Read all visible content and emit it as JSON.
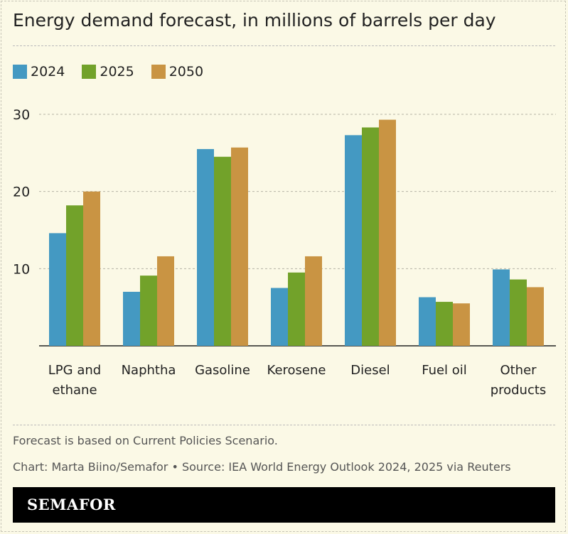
{
  "title": "Energy demand forecast, in millions of barrels per day",
  "note": "Forecast is based on Current Policies Scenario.",
  "credit": "Chart: Marta Biino/Semafor • Source: IEA World Energy Outlook 2024, 2025 via Reuters",
  "logo": "SEMAFOR",
  "chart_data": {
    "type": "bar",
    "title": "Energy demand forecast, in millions of barrels per day",
    "categories": [
      [
        "LPG and",
        "ethane"
      ],
      [
        "Naphtha"
      ],
      [
        "Gasoline"
      ],
      [
        "Kerosene"
      ],
      [
        "Diesel"
      ],
      [
        "Fuel oil"
      ],
      [
        "Other",
        "products"
      ]
    ],
    "series": [
      {
        "name": "2024",
        "color": "#4499c2",
        "values": [
          14.6,
          7.0,
          25.5,
          7.5,
          27.3,
          6.3,
          9.9
        ]
      },
      {
        "name": "2025",
        "color": "#72a22a",
        "values": [
          18.2,
          9.1,
          24.5,
          9.5,
          28.3,
          5.7,
          8.6
        ]
      },
      {
        "name": "2050",
        "color": "#c99443",
        "values": [
          20.0,
          11.6,
          25.7,
          11.6,
          29.3,
          5.5,
          7.6
        ]
      }
    ],
    "yticks": [
      10,
      20,
      30
    ],
    "ylim": [
      0,
      30
    ],
    "grid": true,
    "legend": "top-left"
  }
}
